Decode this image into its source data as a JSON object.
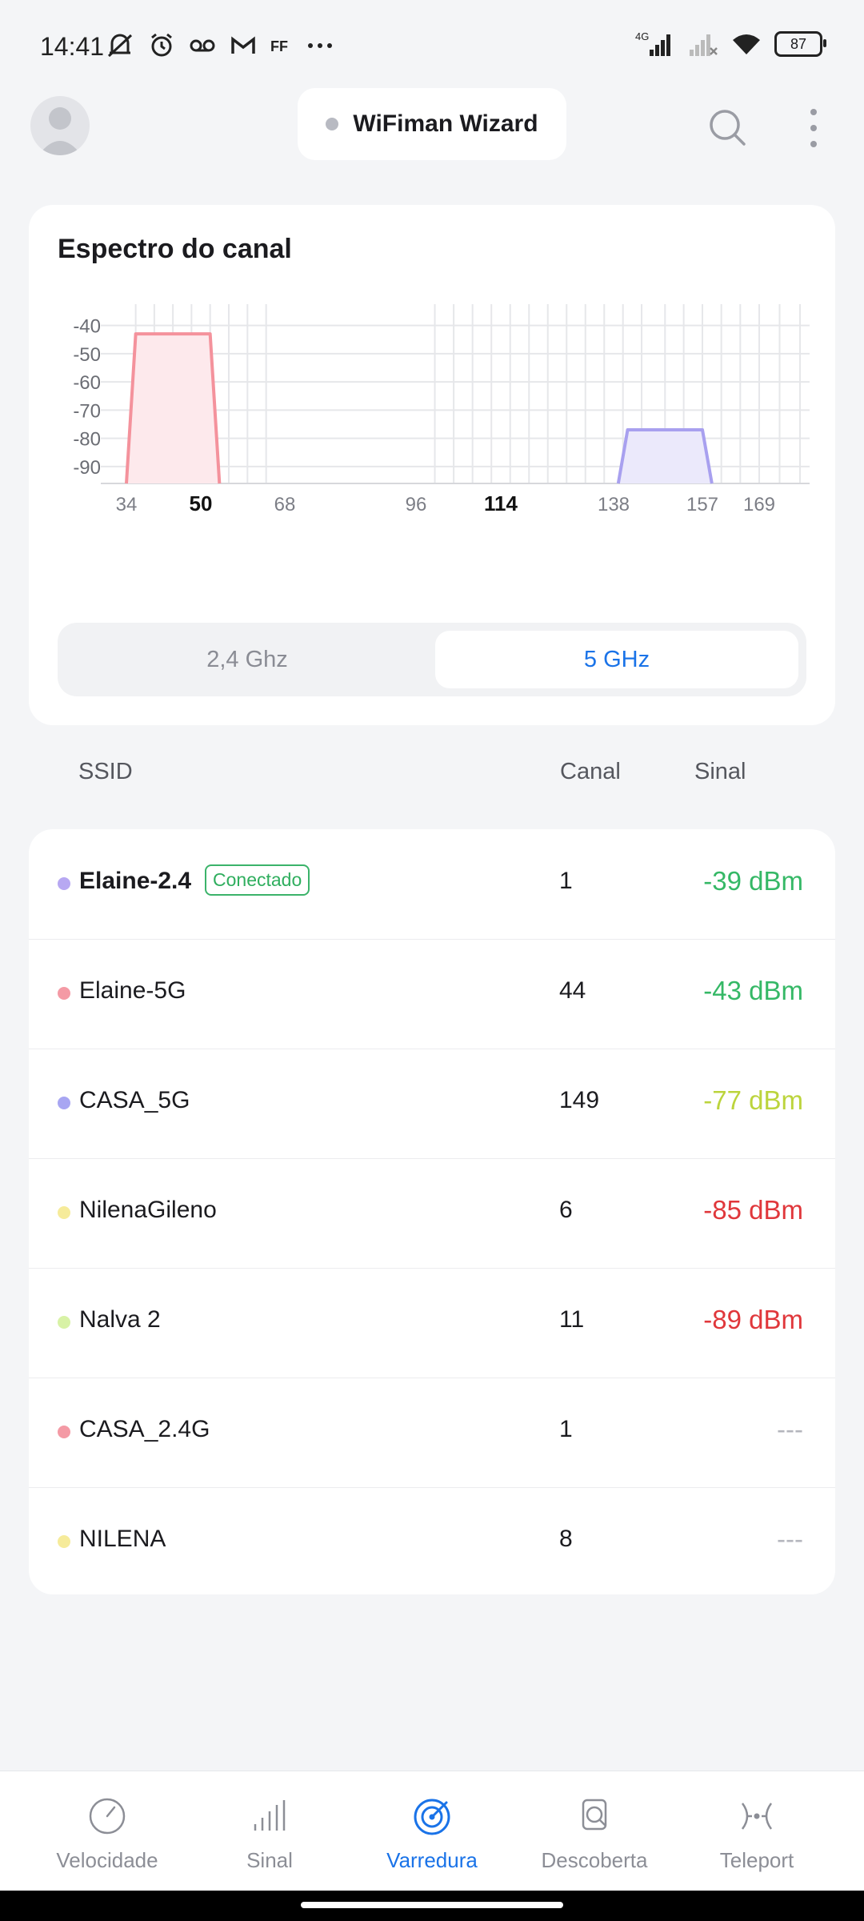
{
  "status_bar": {
    "time": "14:41",
    "network_label": "4G",
    "battery": "87",
    "icons_left": [
      "mute-icon",
      "alarm-icon",
      "voicemail-icon",
      "gmail-icon",
      "ff-icon",
      "more-dots-icon"
    ],
    "icons_right": [
      "signal-icon",
      "signal-weak-icon",
      "wifi-icon",
      "battery-icon"
    ]
  },
  "header": {
    "title": "WiFiman Wizard",
    "status_dot_color": "#b8bac2"
  },
  "spectrum": {
    "title": "Espectro do canal",
    "bands": [
      "2,4 Ghz",
      "5 GHz"
    ],
    "selected_band": "5 GHz",
    "chart_data": {
      "type": "area",
      "y_ticks": [
        -40,
        -50,
        -60,
        -70,
        -80,
        -90
      ],
      "x_ticks": [
        "34",
        "50",
        "68",
        "96",
        "114",
        "138",
        "157",
        "169"
      ],
      "x_ticks_bold": [
        "50",
        "114"
      ],
      "series": [
        {
          "color": "#f4929c",
          "fill": "#fde9ec",
          "center_channel": 44,
          "peak_dbm": -43
        },
        {
          "color": "#a8a0ef",
          "fill": "#ebe9fb",
          "center_channel": 149,
          "peak_dbm": -77
        }
      ]
    }
  },
  "list_header": {
    "ssid": "SSID",
    "canal": "Canal",
    "sinal": "Sinal"
  },
  "networks": [
    {
      "ssid": "Elaine-2.4",
      "connected": true,
      "badge": "Conectado",
      "canal": "1",
      "sinal": "-39 dBm",
      "dot": "#b7a8f2",
      "sinal_color": "#35b866"
    },
    {
      "ssid": "Elaine-5G",
      "connected": false,
      "badge": "",
      "canal": "44",
      "sinal": "-43 dBm",
      "dot": "#f49aa5",
      "sinal_color": "#35b866"
    },
    {
      "ssid": "CASA_5G",
      "connected": false,
      "badge": "",
      "canal": "149",
      "sinal": "-77 dBm",
      "dot": "#a8a6f2",
      "sinal_color": "#bcd43c"
    },
    {
      "ssid": "NilenaGileno",
      "connected": false,
      "badge": "",
      "canal": "6",
      "sinal": "-85 dBm",
      "dot": "#f6eb9a",
      "sinal_color": "#e0373b"
    },
    {
      "ssid": "Nalva 2",
      "connected": false,
      "badge": "",
      "canal": "11",
      "sinal": "-89 dBm",
      "dot": "#d8f2a6",
      "sinal_color": "#e0373b"
    },
    {
      "ssid": "CASA_2.4G",
      "connected": false,
      "badge": "",
      "canal": "1",
      "sinal": "---",
      "dot": "#f49aa5",
      "sinal_color": "#b4b6bd"
    },
    {
      "ssid": "NILENA",
      "connected": false,
      "badge": "",
      "canal": "8",
      "sinal": "---",
      "dot": "#f6eb9a",
      "sinal_color": "#b4b6bd"
    }
  ],
  "bottom_nav": [
    {
      "label": "Velocidade",
      "icon": "speedometer-icon",
      "active": false
    },
    {
      "label": "Sinal",
      "icon": "signal-bars-icon",
      "active": false
    },
    {
      "label": "Varredura",
      "icon": "radar-scan-icon",
      "active": true
    },
    {
      "label": "Descoberta",
      "icon": "discovery-icon",
      "active": false
    },
    {
      "label": "Teleport",
      "icon": "teleport-icon",
      "active": false
    }
  ],
  "colors": {
    "accent": "#1a73e8",
    "good": "#35b866",
    "fair": "#bcd43c",
    "bad": "#e0373b"
  }
}
